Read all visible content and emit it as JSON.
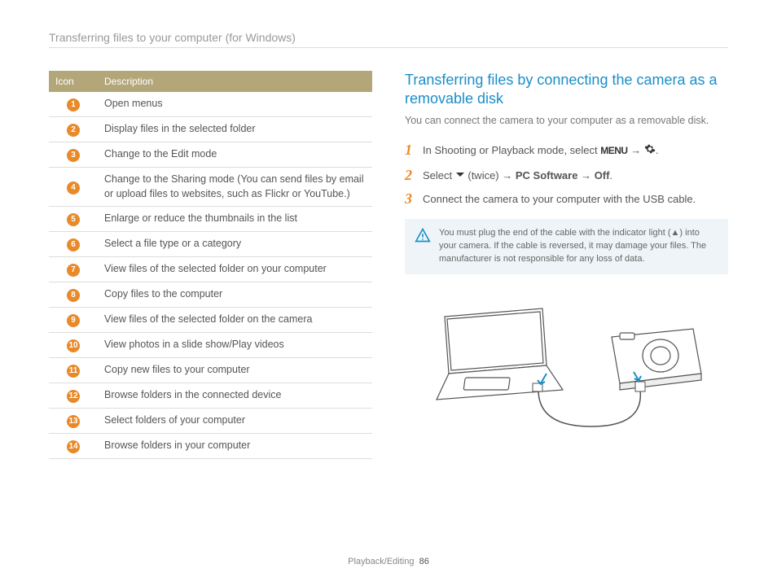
{
  "header": {
    "title": "Transferring files to your computer (for Windows)"
  },
  "table": {
    "header_icon": "Icon",
    "header_desc": "Description",
    "rows": [
      {
        "n": "1",
        "desc": "Open menus"
      },
      {
        "n": "2",
        "desc": "Display files in the selected folder"
      },
      {
        "n": "3",
        "desc": "Change to the Edit mode"
      },
      {
        "n": "4",
        "desc": "Change to the Sharing mode (You can send files by email or upload files to websites, such as Flickr or YouTube.)"
      },
      {
        "n": "5",
        "desc": "Enlarge or reduce the thumbnails in the list"
      },
      {
        "n": "6",
        "desc": "Select a file type or a category"
      },
      {
        "n": "7",
        "desc": "View files of the selected folder on your computer"
      },
      {
        "n": "8",
        "desc": "Copy files to the computer"
      },
      {
        "n": "9",
        "desc": "View files of the selected folder on the camera"
      },
      {
        "n": "10",
        "desc": "View photos in a slide show/Play videos"
      },
      {
        "n": "11",
        "desc": "Copy new files to your computer"
      },
      {
        "n": "12",
        "desc": "Browse folders in the connected device"
      },
      {
        "n": "13",
        "desc": "Select folders of your computer"
      },
      {
        "n": "14",
        "desc": "Browse folders in your computer"
      }
    ]
  },
  "right": {
    "heading": "Transferring files by connecting the camera as a removable disk",
    "sub": "You can connect the camera to your computer as a removable disk.",
    "step1_a": "In Shooting or Playback mode, select ",
    "menu_label": "MENU",
    "arrow": " → ",
    "step2_a": "Select ",
    "step2_b": " (twice) → ",
    "step2_pc": "PC Software",
    "step2_c": " → ",
    "step2_off": "Off",
    "step2_d": ".",
    "step3": "Connect the camera to your computer with the USB cable.",
    "warn": "You must plug the end of the cable with the indicator light (▲) into your camera. If the cable is reversed, it may damage your files. The manufacturer is not responsible for any loss of data."
  },
  "footer": {
    "section": "Playback/Editing",
    "page": "86"
  },
  "colors": {
    "table_header_bg": "#b3a77a",
    "badge_bg": "#e88a2a",
    "heading_color": "#1b8ec8",
    "warn_bg": "#eef4f7"
  }
}
